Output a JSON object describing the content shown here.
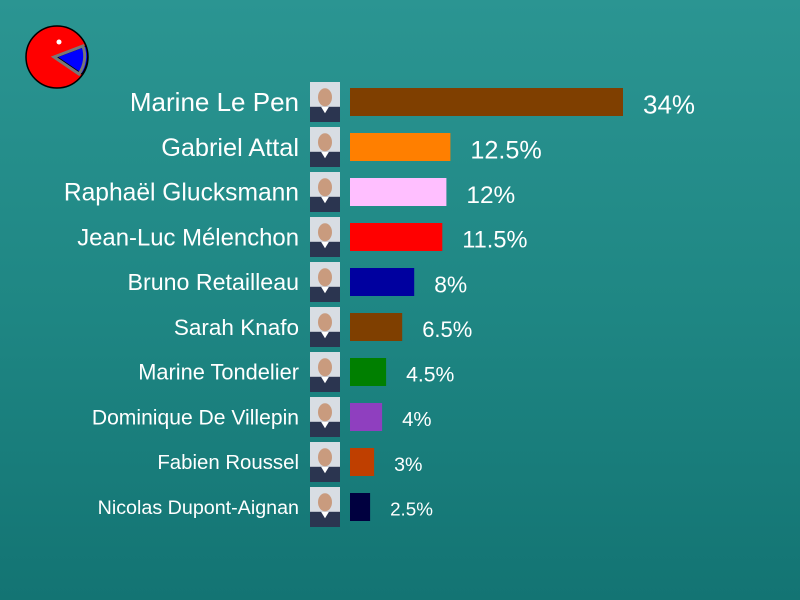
{
  "chart_data": {
    "type": "bar",
    "orientation": "horizontal",
    "categories": [
      "Marine Le Pen",
      "Gabriel Attal",
      "Raphaël Glucksmann",
      "Jean-Luc Mélenchon",
      "Bruno Retailleau",
      "Sarah Knafo",
      "Marine Tondelier",
      "Dominique De Villepin",
      "Fabien Roussel",
      "Nicolas Dupont-Aignan"
    ],
    "values": [
      34,
      12.5,
      12,
      11.5,
      8,
      6.5,
      4.5,
      4,
      3,
      2.5
    ],
    "value_labels": [
      "34%",
      "12.5%",
      "12%",
      "11.5%",
      "8%",
      "6.5%",
      "4.5%",
      "4%",
      "3%",
      "2.5%"
    ],
    "colors": [
      "#7f3f00",
      "#ff7f00",
      "#ffbfff",
      "#ff0000",
      "#00009f",
      "#7f3f00",
      "#007f00",
      "#8f3fbf",
      "#bf3f00",
      "#00003f"
    ],
    "title": "",
    "xlabel": "",
    "ylabel": "",
    "grid": false,
    "legend": "none"
  },
  "logo": {
    "icon": "pie-chart-logo-icon",
    "colors": [
      "#ff0000",
      "#0000ff",
      "#ffffff"
    ]
  },
  "portrait_icon": "candidate-portrait-icon"
}
